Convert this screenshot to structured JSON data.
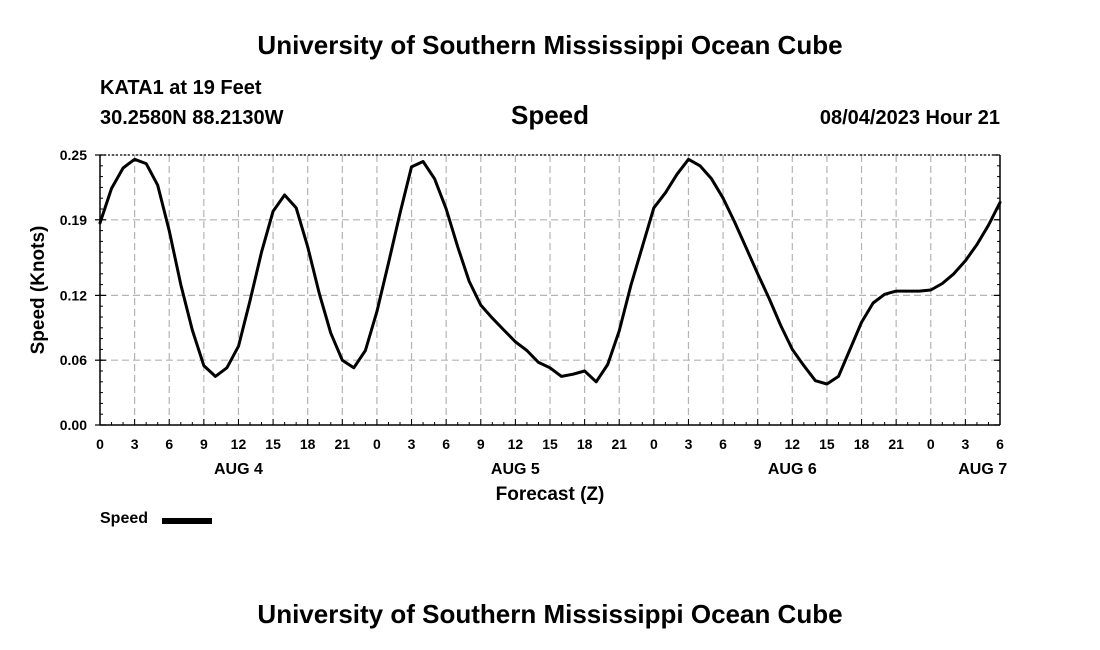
{
  "header": {
    "title": "University of Southern Mississippi Ocean Cube",
    "station": "KATA1 at 19 Feet",
    "coords": "30.2580N  88.2130W",
    "plot_title": "Speed",
    "datetime": "08/04/2023 Hour 21"
  },
  "footer": {
    "title": "University of Southern Mississippi Ocean Cube"
  },
  "legend": {
    "label": "Speed",
    "color": "#000000"
  },
  "chart_data": {
    "type": "line",
    "title": "Speed",
    "xlabel": "Forecast (Z)",
    "ylabel": "Speed (Knots)",
    "ylim": [
      0,
      0.25
    ],
    "yticks": [
      0.0,
      0.06,
      0.12,
      0.19,
      0.25
    ],
    "ytick_labels": [
      "0.00",
      "0.06",
      "0.12",
      "0.19",
      "0.25"
    ],
    "xlim_hours": [
      0,
      78
    ],
    "x_unit": "hours since AUG 4 00Z",
    "xtick_hours": [
      0,
      3,
      6,
      9,
      12,
      15,
      18,
      21,
      24,
      27,
      30,
      33,
      36,
      39,
      42,
      45,
      48,
      51,
      54,
      57,
      60,
      63,
      66,
      69,
      72,
      75,
      78
    ],
    "xtick_labels": [
      "0",
      "3",
      "6",
      "9",
      "12",
      "15",
      "18",
      "21",
      "0",
      "3",
      "6",
      "9",
      "12",
      "15",
      "18",
      "21",
      "0",
      "3",
      "6",
      "9",
      "12",
      "15",
      "18",
      "21",
      "0",
      "3",
      "6"
    ],
    "day_labels": [
      {
        "hour": 12,
        "label": "AUG 4"
      },
      {
        "hour": 36,
        "label": "AUG 5"
      },
      {
        "hour": 60,
        "label": "AUG 6"
      },
      {
        "hour": 76.5,
        "label": "AUG 7"
      }
    ],
    "grid": true,
    "series": [
      {
        "name": "Speed",
        "color": "#000000",
        "x": [
          0,
          1,
          2,
          3,
          4,
          5,
          6,
          7,
          8,
          9,
          10,
          11,
          12,
          13,
          14,
          15,
          16,
          17,
          18,
          19,
          20,
          21,
          22,
          23,
          24,
          25,
          26,
          27,
          28,
          29,
          30,
          31,
          32,
          33,
          34,
          35,
          36,
          37,
          38,
          39,
          40,
          41,
          42,
          43,
          44,
          45,
          46,
          47,
          48,
          49,
          50,
          51,
          52,
          53,
          54,
          55,
          56,
          57,
          58,
          59,
          60,
          61,
          62,
          63,
          64,
          65,
          66,
          67,
          68,
          69,
          70,
          71,
          72,
          73,
          74,
          75,
          76,
          77,
          78
        ],
        "y": [
          0.187,
          0.219,
          0.238,
          0.246,
          0.242,
          0.222,
          0.18,
          0.13,
          0.088,
          0.055,
          0.045,
          0.053,
          0.073,
          0.115,
          0.16,
          0.198,
          0.213,
          0.201,
          0.165,
          0.122,
          0.085,
          0.06,
          0.053,
          0.069,
          0.105,
          0.15,
          0.196,
          0.239,
          0.244,
          0.228,
          0.2,
          0.165,
          0.133,
          0.111,
          0.099,
          0.088,
          0.077,
          0.069,
          0.058,
          0.053,
          0.045,
          0.047,
          0.05,
          0.04,
          0.056,
          0.087,
          0.129,
          0.165,
          0.201,
          0.215,
          0.232,
          0.246,
          0.24,
          0.228,
          0.21,
          0.188,
          0.164,
          0.14,
          0.117,
          0.092,
          0.07,
          0.055,
          0.041,
          0.038,
          0.045,
          0.07,
          0.095,
          0.113,
          0.121,
          0.124,
          0.124,
          0.124,
          0.125,
          0.131,
          0.14,
          0.152,
          0.167,
          0.185,
          0.206
        ]
      }
    ]
  }
}
